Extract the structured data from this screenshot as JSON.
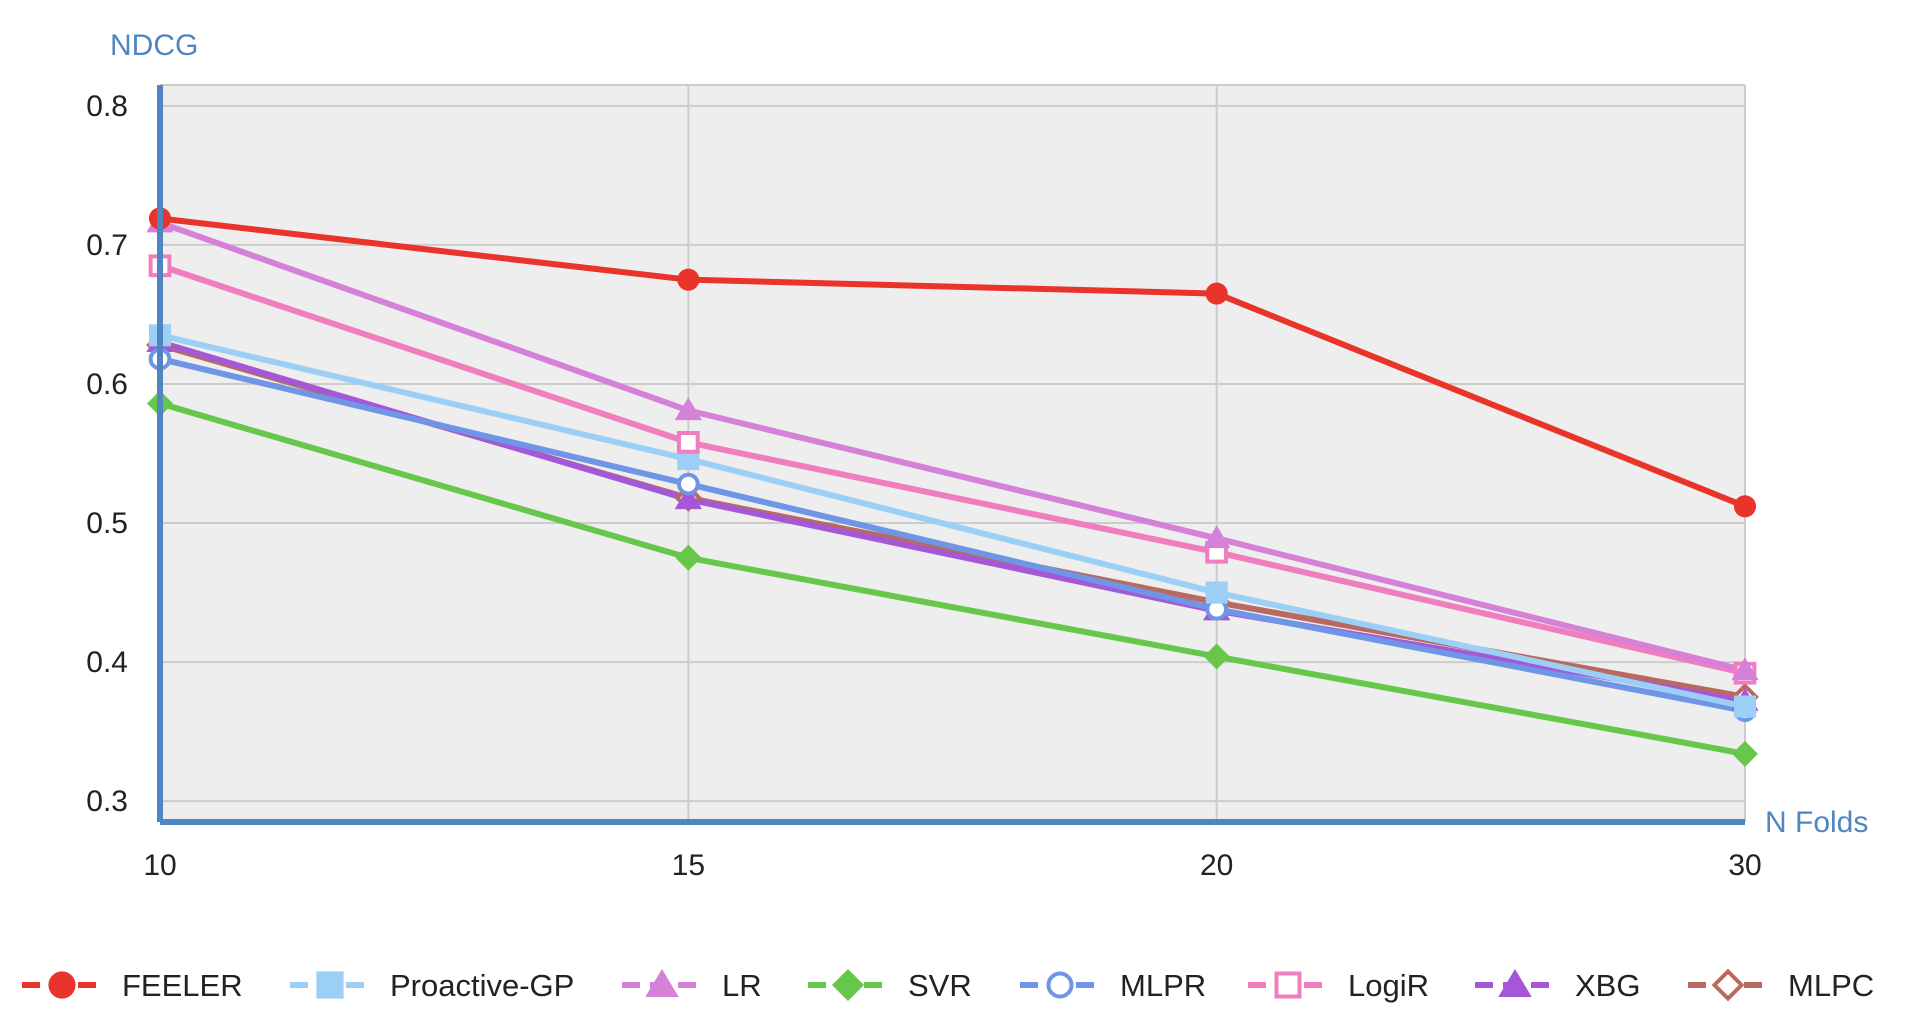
{
  "chart_data": {
    "type": "line",
    "title": "",
    "xlabel": "N Folds",
    "ylabel": "NDCG",
    "categories": [
      "10",
      "15",
      "20",
      "30"
    ],
    "y_ticks": [
      "0.3",
      "0.4",
      "0.5",
      "0.6",
      "0.7",
      "0.8"
    ],
    "ylim": [
      0.285,
      0.815
    ],
    "grid": true,
    "legend_position": "bottom",
    "series": [
      {
        "name": "FEELER",
        "color": "#e8342a",
        "marker": "circle-filled",
        "dashed": false,
        "values": [
          0.719,
          0.675,
          0.665,
          0.512
        ]
      },
      {
        "name": "Proactive-GP",
        "color": "#9ccff5",
        "marker": "square-filled",
        "dashed": false,
        "values": [
          0.635,
          0.546,
          0.45,
          0.368
        ]
      },
      {
        "name": "LR",
        "color": "#d681d8",
        "marker": "triangle-filled",
        "dashed": false,
        "values": [
          0.716,
          0.581,
          0.489,
          0.394
        ]
      },
      {
        "name": "SVR",
        "color": "#66c74a",
        "marker": "diamond-filled",
        "dashed": false,
        "values": [
          0.586,
          0.475,
          0.404,
          0.334
        ]
      },
      {
        "name": "MLPR",
        "color": "#6e95e6",
        "marker": "circle-open",
        "dashed": false,
        "values": [
          0.618,
          0.528,
          0.438,
          0.365
        ]
      },
      {
        "name": "LogiR",
        "color": "#f07dbd",
        "marker": "square-open",
        "dashed": false,
        "values": [
          0.685,
          0.558,
          0.479,
          0.392
        ]
      },
      {
        "name": "XBG",
        "color": "#a458d8",
        "marker": "triangle-filled",
        "dashed": false,
        "values": [
          0.63,
          0.517,
          0.437,
          0.372
        ]
      },
      {
        "name": "MLPC",
        "color": "#b86a60",
        "marker": "diamond-open",
        "dashed": false,
        "values": [
          0.628,
          0.518,
          0.443,
          0.375
        ]
      }
    ]
  }
}
